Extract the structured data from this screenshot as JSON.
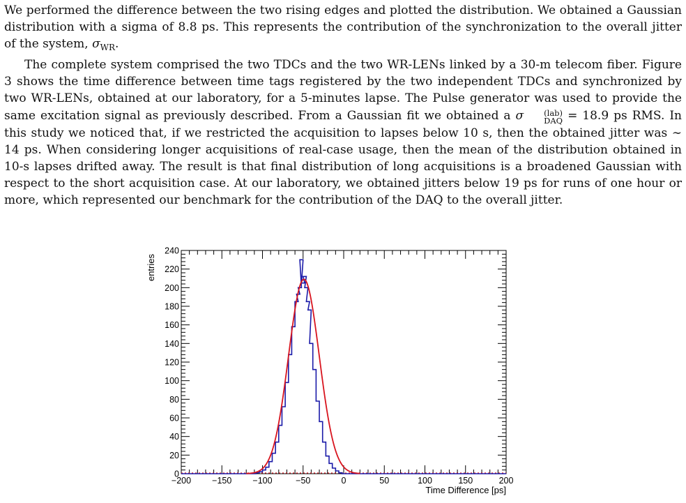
{
  "paragraph1": {
    "text": "We performed the difference between the two rising edges and plotted the distribution. We obtained a Gaussian distribution with a sigma of 8.8 ps. This represents the contribution of the synchronization to the overall jitter of the system, ",
    "symbol": "σ",
    "subscript": "WR",
    "end": "."
  },
  "paragraph2": {
    "part1": "The complete system comprised the two TDCs and the two WR-LENs linked by a 30-m telecom fiber. Figure 3 shows the time difference between time tags registered by the two independent TDCs and synchronized by two WR-LENs, obtained at our laboratory, for a 5-minutes lapse. The Pulse generator was used to provide the same excitation signal as previously described. From a Gaussian fit we obtained a ",
    "symbol": "σ",
    "superscript": "(lab)",
    "subscript": "DAQ",
    "part2": " = 18.9 ps RMS. In this study we noticed that, if we restricted the acquisition to lapses below 10 s, then the obtained jitter was ∼ 14 ps. When considering longer acquisitions of real-case usage, then the mean of the distribution obtained in 10-s lapses drifted away. The result is that final distribution of long acquisitions is a broadened Gaussian with respect to the short acquisition case. At our laboratory, we obtained jitters below 19 ps for runs of one hour or more, which represented our benchmark for the contribution of the DAQ to the overall jitter."
  },
  "chart_data": {
    "type": "histogram",
    "xlabel": "Time Difference [ps]",
    "ylabel": "entries",
    "xlim": [
      -200,
      200
    ],
    "ylim": [
      0,
      240
    ],
    "xticks": [
      -200,
      -150,
      -100,
      -50,
      0,
      50,
      100,
      150,
      200
    ],
    "yticks": [
      0,
      20,
      40,
      60,
      80,
      100,
      120,
      140,
      160,
      180,
      200,
      220,
      240
    ],
    "series": [
      {
        "kind": "histogram",
        "color": "#1a1aa8",
        "x": [
          -106,
          -102,
          -98,
          -94,
          -90,
          -86,
          -82,
          -78,
          -74,
          -70,
          -66,
          -62,
          -58,
          -56,
          -54,
          -52,
          -50,
          -48,
          -46,
          -44,
          -42,
          -40,
          -36,
          -32,
          -28,
          -24,
          -20,
          -16,
          -12,
          -8,
          -4,
          0
        ],
        "values": [
          1,
          2,
          4,
          7,
          13,
          22,
          34,
          52,
          72,
          98,
          128,
          158,
          185,
          193,
          200,
          230,
          205,
          212,
          200,
          185,
          176,
          140,
          112,
          78,
          56,
          34,
          19,
          11,
          6,
          3,
          1,
          0
        ]
      },
      {
        "kind": "gaussian-fit",
        "color": "#d8141e",
        "mean": -49,
        "sigma": 18.9,
        "amplitude": 209
      }
    ]
  }
}
